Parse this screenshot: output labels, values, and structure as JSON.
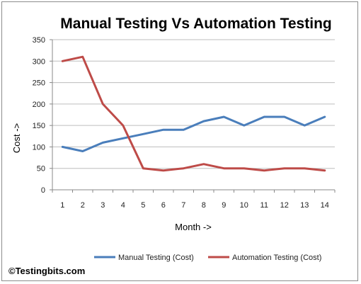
{
  "chart_data": {
    "type": "line",
    "title": "Manual Testing Vs Automation Testing",
    "xlabel": "Month ->",
    "ylabel": "Cost ->",
    "x": [
      1,
      2,
      3,
      4,
      5,
      6,
      7,
      8,
      9,
      10,
      11,
      12,
      13,
      14
    ],
    "ylim": [
      0,
      350
    ],
    "yticks": [
      0,
      50,
      100,
      150,
      200,
      250,
      300,
      350
    ],
    "grid": true,
    "legend_position": "bottom",
    "series": [
      {
        "name": "Manual Testing (Cost)",
        "color": "#4a7ebb",
        "values": [
          100,
          90,
          110,
          120,
          130,
          140,
          140,
          160,
          170,
          150,
          170,
          170,
          150,
          170
        ]
      },
      {
        "name": "Automation Testing (Cost)",
        "color": "#be4b48",
        "values": [
          300,
          310,
          200,
          150,
          50,
          45,
          50,
          60,
          50,
          50,
          45,
          50,
          50,
          45
        ]
      }
    ]
  },
  "credit": "©Testingbits.com"
}
